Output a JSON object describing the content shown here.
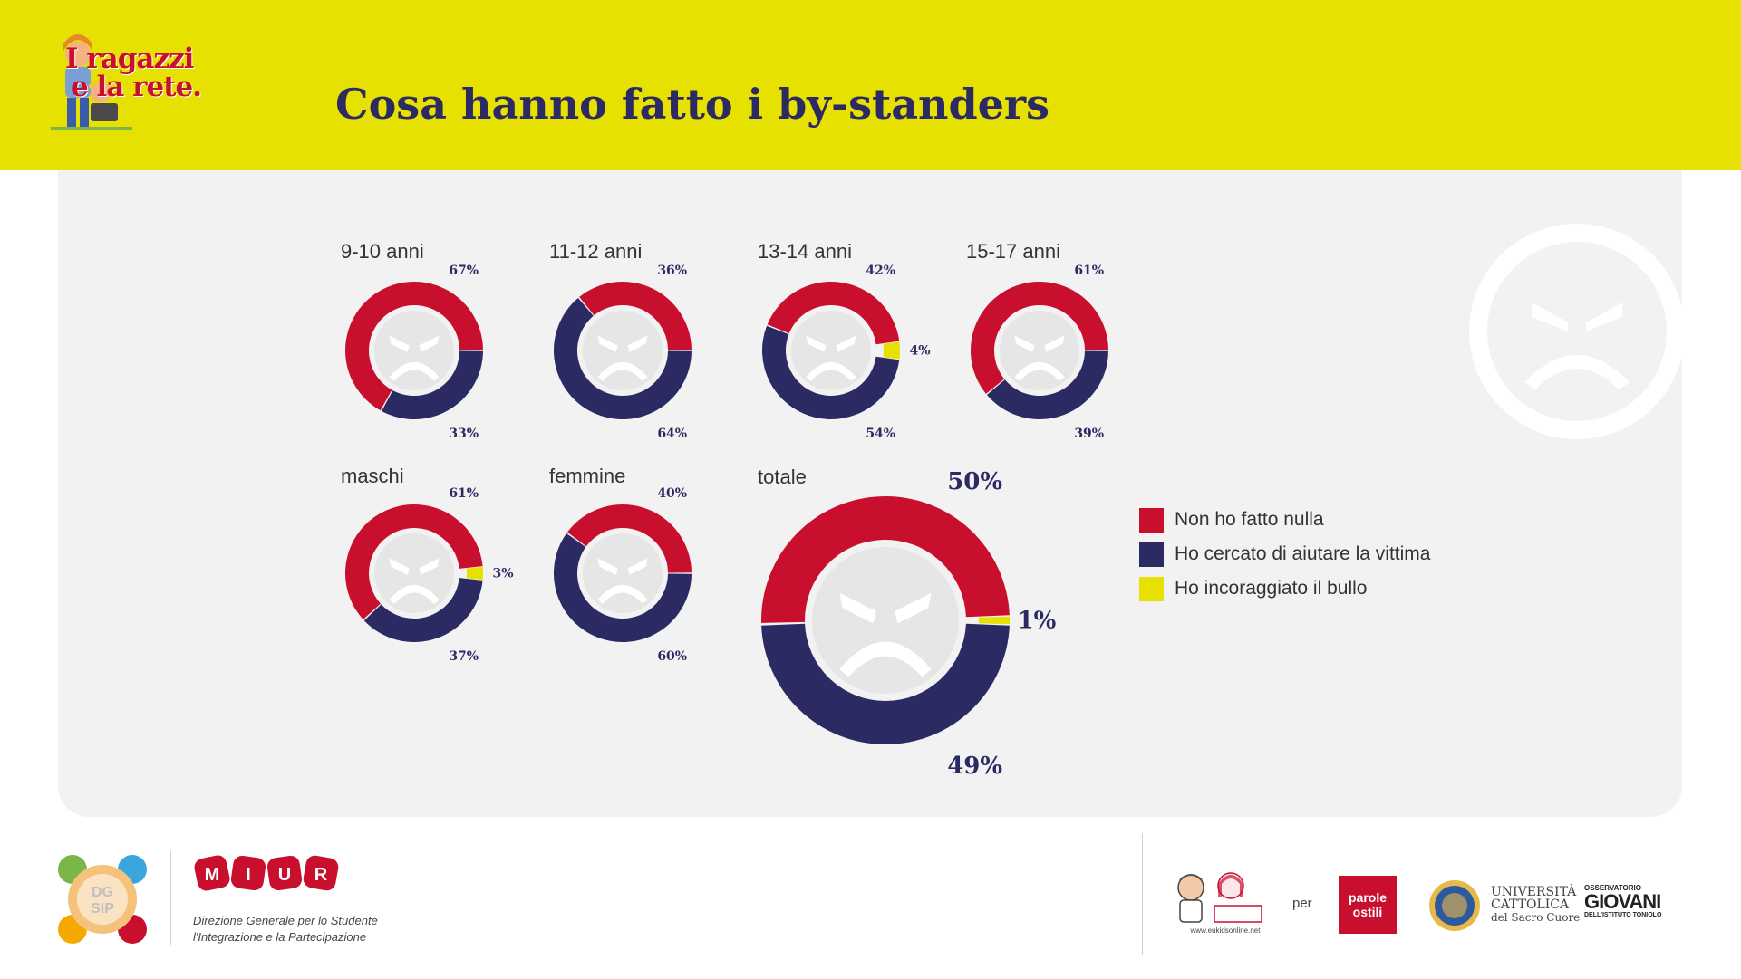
{
  "header": {
    "logo_line1": "I ragazzi",
    "logo_line2": "e la rete.",
    "title": "Cosa hanno fatto i by-standers"
  },
  "colors": {
    "red": "#c8102e",
    "navy": "#2b2a63",
    "yellow": "#e6e100",
    "face": "#e6e6e6"
  },
  "chart_data": {
    "type": "donut",
    "series_names": [
      "Non ho fatto nulla",
      "Ho cercato di aiutare la vittima",
      "Ho incoraggiato il bullo"
    ],
    "groups": [
      {
        "label": "9-10 anni",
        "values": [
          67,
          33,
          0
        ],
        "labels": [
          "67%",
          "33%",
          ""
        ]
      },
      {
        "label": "11-12 anni",
        "values": [
          36,
          64,
          0
        ],
        "labels": [
          "36%",
          "64%",
          ""
        ]
      },
      {
        "label": "13-14 anni",
        "values": [
          42,
          54,
          4
        ],
        "labels": [
          "42%",
          "54%",
          "4%"
        ]
      },
      {
        "label": "15-17 anni",
        "values": [
          61,
          39,
          0
        ],
        "labels": [
          "61%",
          "39%",
          ""
        ]
      },
      {
        "label": "maschi",
        "values": [
          61,
          37,
          3
        ],
        "labels": [
          "61%",
          "37%",
          "3%"
        ]
      },
      {
        "label": "femmine",
        "values": [
          40,
          60,
          0
        ],
        "labels": [
          "40%",
          "60%",
          ""
        ]
      },
      {
        "label": "totale",
        "values": [
          50,
          49,
          1
        ],
        "labels": [
          "50%",
          "49%",
          "1%"
        ]
      }
    ]
  },
  "legend": [
    {
      "label": "Non ho fatto nulla",
      "color": "#c8102e"
    },
    {
      "label": "Ho cercato di aiutare la vittima",
      "color": "#2b2a63"
    },
    {
      "label": "Ho incoraggiato il bullo",
      "color": "#e6e100"
    }
  ],
  "footer": {
    "dgsip_line1": "DG",
    "dgsip_line2": "SIP",
    "miur_letters": [
      "M",
      "I",
      "U",
      "R"
    ],
    "miur_sub_line1": "Direzione Generale per lo Studente",
    "miur_sub_line2": "l'Integrazione e la Partecipazione",
    "eukids_url": "www.eukidsonline.net",
    "per": "per",
    "parole_line1": "parole",
    "parole_line2": "ostili",
    "unicatt_line1": "UNIVERSITÀ",
    "unicatt_line2": "CATTOLICA",
    "unicatt_line3": "del Sacro Cuore",
    "giovani_top": "OSSERVATORIO",
    "giovani_main": "GIOVANI",
    "giovani_sub": "DELL'ISTITUTO TONIOLO"
  }
}
